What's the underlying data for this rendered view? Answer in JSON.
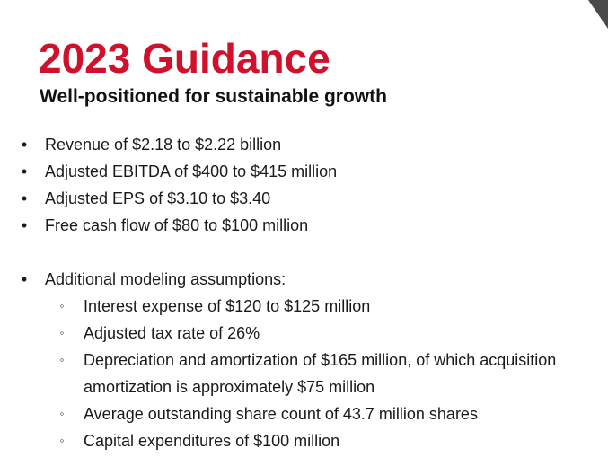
{
  "slide": {
    "title": "2023 Guidance",
    "subtitle": "Well-positioned for sustainable growth",
    "title_color": "#d0112b",
    "corner_color": "#4a4a4a",
    "bullet_glyph": "•",
    "sub_bullet_glyph": "◦",
    "bullets": [
      "Revenue of $2.18 to $2.22 billion",
      "Adjusted EBITDA of $400 to $415 million",
      "Adjusted EPS of $3.10 to $3.40",
      "Free cash flow of $80 to $100 million"
    ],
    "assumptions": {
      "label": "Additional modeling assumptions:",
      "items": [
        "Interest expense of $120 to $125 million",
        "Adjusted tax rate of 26%",
        "Depreciation and amortization of $165 million, of which acquisition",
        "amortization is approximately $75 million",
        "Average outstanding share count of 43.7 million shares",
        "Capital expenditures of $100 million"
      ]
    }
  }
}
